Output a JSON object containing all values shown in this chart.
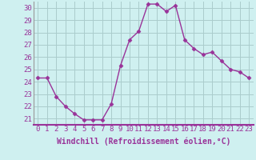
{
  "x": [
    0,
    1,
    2,
    3,
    4,
    5,
    6,
    7,
    8,
    9,
    10,
    11,
    12,
    13,
    14,
    15,
    16,
    17,
    18,
    19,
    20,
    21,
    22,
    23
  ],
  "y": [
    24.3,
    24.3,
    22.8,
    22.0,
    21.4,
    20.9,
    20.9,
    20.9,
    22.2,
    25.3,
    27.4,
    28.1,
    30.3,
    30.3,
    29.7,
    30.2,
    27.4,
    26.7,
    26.2,
    26.4,
    25.7,
    25.0,
    24.8,
    24.3
  ],
  "line_color": "#993399",
  "marker": "D",
  "marker_size": 2.5,
  "bg_color": "#cff0f0",
  "grid_color": "#aacccc",
  "xlabel": "Windchill (Refroidissement éolien,°C)",
  "xlabel_fontsize": 7,
  "tick_fontsize": 6.5,
  "ylim": [
    20.5,
    30.5
  ],
  "xlim": [
    -0.5,
    23.5
  ],
  "yticks": [
    21,
    22,
    23,
    24,
    25,
    26,
    27,
    28,
    29,
    30
  ],
  "xticks": [
    0,
    1,
    2,
    3,
    4,
    5,
    6,
    7,
    8,
    9,
    10,
    11,
    12,
    13,
    14,
    15,
    16,
    17,
    18,
    19,
    20,
    21,
    22,
    23
  ],
  "spine_color": "#993399",
  "left_spine_color": "#999999"
}
